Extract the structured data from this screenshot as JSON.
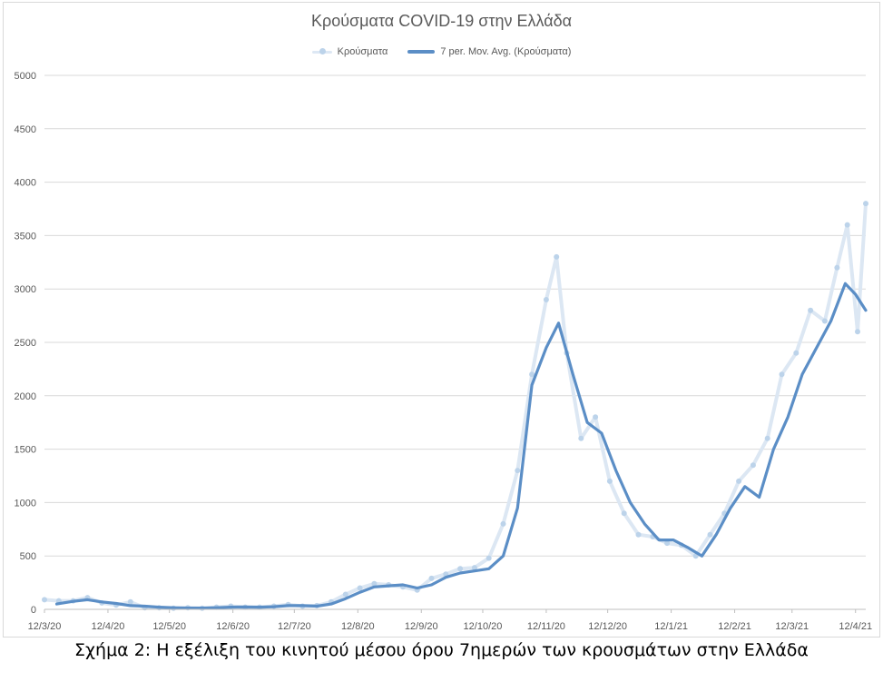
{
  "chart_data": {
    "type": "line",
    "title": "Κρούσματα COVID-19 στην Ελλάδα",
    "xlabel": "",
    "ylabel": "",
    "ylim": [
      0,
      5000
    ],
    "y_ticks": [
      0,
      500,
      1000,
      1500,
      2000,
      2500,
      3000,
      3500,
      4000,
      4500,
      5000
    ],
    "x_ticks": [
      "12/3/20",
      "12/4/20",
      "12/5/20",
      "12/6/20",
      "12/7/20",
      "12/8/20",
      "12/9/20",
      "12/10/20",
      "12/11/20",
      "12/12/20",
      "12/1/21",
      "12/2/21",
      "12/3/21",
      "12/4/21"
    ],
    "x_range": [
      "2020-03-12",
      "2021-04-17"
    ],
    "grid": "horizontal",
    "legend_position": "top",
    "series": [
      {
        "name": "Κρούσματα",
        "style": "line with markers",
        "color": "#dce7f3",
        "marker_color": "#bcd3ea",
        "points": [
          [
            "2020-03-12",
            90
          ],
          [
            "2020-03-19",
            80
          ],
          [
            "2020-03-26",
            80
          ],
          [
            "2020-04-02",
            110
          ],
          [
            "2020-04-09",
            60
          ],
          [
            "2020-04-16",
            40
          ],
          [
            "2020-04-23",
            70
          ],
          [
            "2020-04-30",
            15
          ],
          [
            "2020-05-07",
            15
          ],
          [
            "2020-05-14",
            10
          ],
          [
            "2020-05-21",
            15
          ],
          [
            "2020-05-28",
            10
          ],
          [
            "2020-06-04",
            20
          ],
          [
            "2020-06-11",
            30
          ],
          [
            "2020-06-18",
            20
          ],
          [
            "2020-06-25",
            20
          ],
          [
            "2020-07-02",
            30
          ],
          [
            "2020-07-09",
            45
          ],
          [
            "2020-07-16",
            30
          ],
          [
            "2020-07-23",
            35
          ],
          [
            "2020-07-30",
            70
          ],
          [
            "2020-08-06",
            140
          ],
          [
            "2020-08-13",
            200
          ],
          [
            "2020-08-20",
            240
          ],
          [
            "2020-08-27",
            230
          ],
          [
            "2020-09-03",
            210
          ],
          [
            "2020-09-10",
            180
          ],
          [
            "2020-09-17",
            290
          ],
          [
            "2020-09-24",
            330
          ],
          [
            "2020-10-01",
            380
          ],
          [
            "2020-10-08",
            390
          ],
          [
            "2020-10-15",
            480
          ],
          [
            "2020-10-22",
            800
          ],
          [
            "2020-10-29",
            1300
          ],
          [
            "2020-11-05",
            2200
          ],
          [
            "2020-11-12",
            2900
          ],
          [
            "2020-11-17",
            3300
          ],
          [
            "2020-11-22",
            2400
          ],
          [
            "2020-11-29",
            1600
          ],
          [
            "2020-12-06",
            1800
          ],
          [
            "2020-12-13",
            1200
          ],
          [
            "2020-12-20",
            900
          ],
          [
            "2020-12-27",
            700
          ],
          [
            "2021-01-03",
            680
          ],
          [
            "2021-01-10",
            620
          ],
          [
            "2021-01-17",
            600
          ],
          [
            "2021-01-24",
            500
          ],
          [
            "2021-01-31",
            700
          ],
          [
            "2021-02-07",
            900
          ],
          [
            "2021-02-14",
            1200
          ],
          [
            "2021-02-21",
            1350
          ],
          [
            "2021-02-28",
            1600
          ],
          [
            "2021-03-07",
            2200
          ],
          [
            "2021-03-14",
            2400
          ],
          [
            "2021-03-21",
            2800
          ],
          [
            "2021-03-28",
            2700
          ],
          [
            "2021-04-03",
            3200
          ],
          [
            "2021-04-08",
            3600
          ],
          [
            "2021-04-13",
            2600
          ],
          [
            "2021-04-17",
            3800
          ]
        ]
      },
      {
        "name": "7 per. Mov. Avg. (Κρούσματα)",
        "style": "line",
        "color": "#5b8ec6",
        "points": [
          [
            "2020-03-18",
            50
          ],
          [
            "2020-03-26",
            75
          ],
          [
            "2020-04-02",
            90
          ],
          [
            "2020-04-09",
            70
          ],
          [
            "2020-04-16",
            55
          ],
          [
            "2020-04-23",
            35
          ],
          [
            "2020-04-30",
            30
          ],
          [
            "2020-05-07",
            20
          ],
          [
            "2020-05-14",
            15
          ],
          [
            "2020-05-21",
            12
          ],
          [
            "2020-05-28",
            12
          ],
          [
            "2020-06-04",
            15
          ],
          [
            "2020-06-11",
            20
          ],
          [
            "2020-06-18",
            22
          ],
          [
            "2020-06-25",
            20
          ],
          [
            "2020-07-02",
            25
          ],
          [
            "2020-07-09",
            35
          ],
          [
            "2020-07-16",
            35
          ],
          [
            "2020-07-23",
            30
          ],
          [
            "2020-07-30",
            50
          ],
          [
            "2020-08-06",
            100
          ],
          [
            "2020-08-13",
            160
          ],
          [
            "2020-08-20",
            210
          ],
          [
            "2020-08-27",
            220
          ],
          [
            "2020-09-03",
            230
          ],
          [
            "2020-09-10",
            200
          ],
          [
            "2020-09-17",
            230
          ],
          [
            "2020-09-24",
            300
          ],
          [
            "2020-10-01",
            340
          ],
          [
            "2020-10-08",
            360
          ],
          [
            "2020-10-15",
            380
          ],
          [
            "2020-10-22",
            500
          ],
          [
            "2020-10-29",
            950
          ],
          [
            "2020-11-05",
            2100
          ],
          [
            "2020-11-12",
            2450
          ],
          [
            "2020-11-18",
            2680
          ],
          [
            "2020-11-25",
            2200
          ],
          [
            "2020-12-02",
            1750
          ],
          [
            "2020-12-09",
            1650
          ],
          [
            "2020-12-16",
            1300
          ],
          [
            "2020-12-23",
            1000
          ],
          [
            "2020-12-30",
            800
          ],
          [
            "2021-01-06",
            650
          ],
          [
            "2021-01-13",
            650
          ],
          [
            "2021-01-20",
            580
          ],
          [
            "2021-01-27",
            500
          ],
          [
            "2021-02-03",
            700
          ],
          [
            "2021-02-10",
            950
          ],
          [
            "2021-02-17",
            1150
          ],
          [
            "2021-02-24",
            1050
          ],
          [
            "2021-03-03",
            1500
          ],
          [
            "2021-03-10",
            1800
          ],
          [
            "2021-03-17",
            2200
          ],
          [
            "2021-03-24",
            2450
          ],
          [
            "2021-03-31",
            2700
          ],
          [
            "2021-04-07",
            3050
          ],
          [
            "2021-04-12",
            2950
          ],
          [
            "2021-04-17",
            2800
          ]
        ]
      }
    ]
  },
  "caption": "Σχήμα 2: Η εξέλιξη του κινητού μέσου όρου 7ημερών των κρουσμάτων στην Ελλάδα"
}
